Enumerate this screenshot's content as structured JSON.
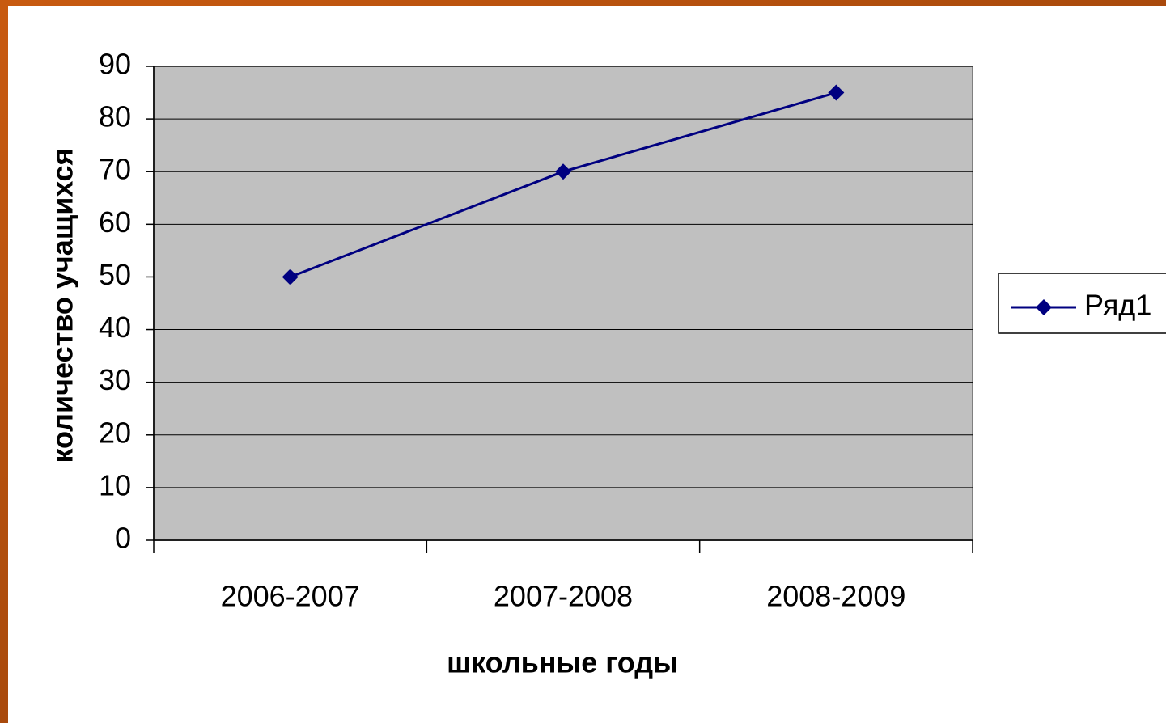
{
  "chart_data": {
    "type": "line",
    "categories": [
      "2006-2007",
      "2007-2008",
      "2008-2009"
    ],
    "series": [
      {
        "name": "Ряд1",
        "color": "#000080",
        "values": [
          50,
          70,
          85
        ]
      }
    ],
    "xlabel": "школьные годы",
    "ylabel": "количество учащихся",
    "ylim": [
      0,
      90
    ],
    "yticks": [
      0,
      10,
      20,
      30,
      40,
      50,
      60,
      70,
      80,
      90
    ],
    "grid": true,
    "legend": "right",
    "plot_background": "#c0c0c0"
  }
}
